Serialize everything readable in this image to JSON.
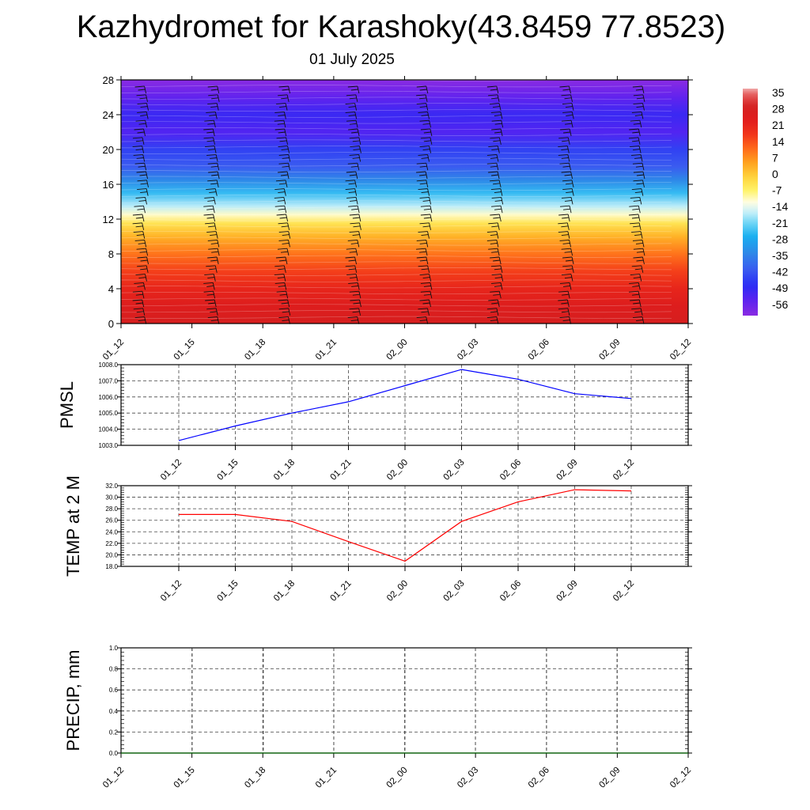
{
  "title": "Kazhydromet for Karashoky(43.8459 77.8523)",
  "subtitle": "01 July 2025",
  "colors": {
    "pmsl_line": "#0000ff",
    "temp_line": "#ff0000",
    "precip_line": "#006400",
    "grid": "#555555"
  },
  "chart_data": [
    {
      "type": "heatmap",
      "id": "upper-air",
      "title": "",
      "xlabel": "",
      "ylabel": "",
      "x_ticks": [
        "01_12",
        "01_15",
        "01_18",
        "01_21",
        "02_00",
        "02_03",
        "02_06",
        "02_09",
        "02_12"
      ],
      "y_ticks": [
        "0",
        "4",
        "8",
        "12",
        "16",
        "20",
        "24",
        "28"
      ],
      "ylim": [
        0,
        28
      ],
      "temperature_profile": [
        {
          "level": 0,
          "value": 29
        },
        {
          "level": 2,
          "value": 26
        },
        {
          "level": 4,
          "value": 22
        },
        {
          "level": 6,
          "value": 17
        },
        {
          "level": 8,
          "value": 11
        },
        {
          "level": 10,
          "value": 4
        },
        {
          "level": 11.5,
          "value": -3
        },
        {
          "level": 12.5,
          "value": -10
        },
        {
          "level": 13.5,
          "value": -16
        },
        {
          "level": 15,
          "value": -24
        },
        {
          "level": 16.5,
          "value": -33
        },
        {
          "level": 18,
          "value": -40
        },
        {
          "level": 20,
          "value": -44
        },
        {
          "level": 22,
          "value": -52
        },
        {
          "level": 24,
          "value": -49
        },
        {
          "level": 26,
          "value": -54
        },
        {
          "level": 28,
          "value": -60
        }
      ],
      "colorbar_labels": [
        "35",
        "28",
        "21",
        "14",
        "7",
        "0",
        "-7",
        "-14",
        "-21",
        "-28",
        "-35",
        "-42",
        "-49",
        "-56"
      ],
      "colorbar_range": [
        -60,
        38
      ],
      "wind_barb_columns": [
        "01_13",
        "01_16",
        "01_19",
        "01_22",
        "02_01",
        "02_04",
        "02_07",
        "02_10",
        "02_13"
      ]
    },
    {
      "type": "line",
      "id": "pmsl",
      "ylabel": "PMSL",
      "x": [
        "01_12",
        "01_15",
        "01_18",
        "01_21",
        "02_00",
        "02_03",
        "02_06",
        "02_09",
        "02_12"
      ],
      "y_ticks": [
        "1003.0",
        "1004.0",
        "1005.0",
        "1006.0",
        "1007.0",
        "1008.0"
      ],
      "ylim": [
        1003.0,
        1008.0
      ],
      "series": [
        {
          "values": [
            1003.3,
            1004.2,
            1005.0,
            1005.7,
            1006.7,
            1007.7,
            1007.1,
            1006.2,
            1005.9
          ]
        }
      ]
    },
    {
      "type": "line",
      "id": "temp2m",
      "ylabel": "TEMP at 2 M",
      "x": [
        "01_12",
        "01_15",
        "01_18",
        "01_21",
        "02_00",
        "02_03",
        "02_06",
        "02_09",
        "02_12"
      ],
      "y_ticks": [
        "18.0",
        "20.0",
        "22.0",
        "24.0",
        "26.0",
        "28.0",
        "30.0",
        "32.0"
      ],
      "ylim": [
        18.0,
        32.0
      ],
      "series": [
        {
          "values": [
            27.0,
            27.0,
            25.8,
            22.3,
            18.9,
            25.8,
            29.2,
            31.3,
            31.1
          ]
        }
      ]
    },
    {
      "type": "line",
      "id": "precip",
      "ylabel": "PRECIP, mm",
      "x": [
        "01_12",
        "01_15",
        "01_18",
        "01_21",
        "02_00",
        "02_03",
        "02_06",
        "02_09",
        "02_12"
      ],
      "y_ticks": [
        "0.0",
        "0.2",
        "0.4",
        "0.6",
        "0.8",
        "1.0"
      ],
      "ylim": [
        0.0,
        1.0
      ],
      "series": [
        {
          "values": [
            0,
            0,
            0,
            0,
            0,
            0,
            0,
            0,
            0
          ]
        }
      ]
    }
  ]
}
